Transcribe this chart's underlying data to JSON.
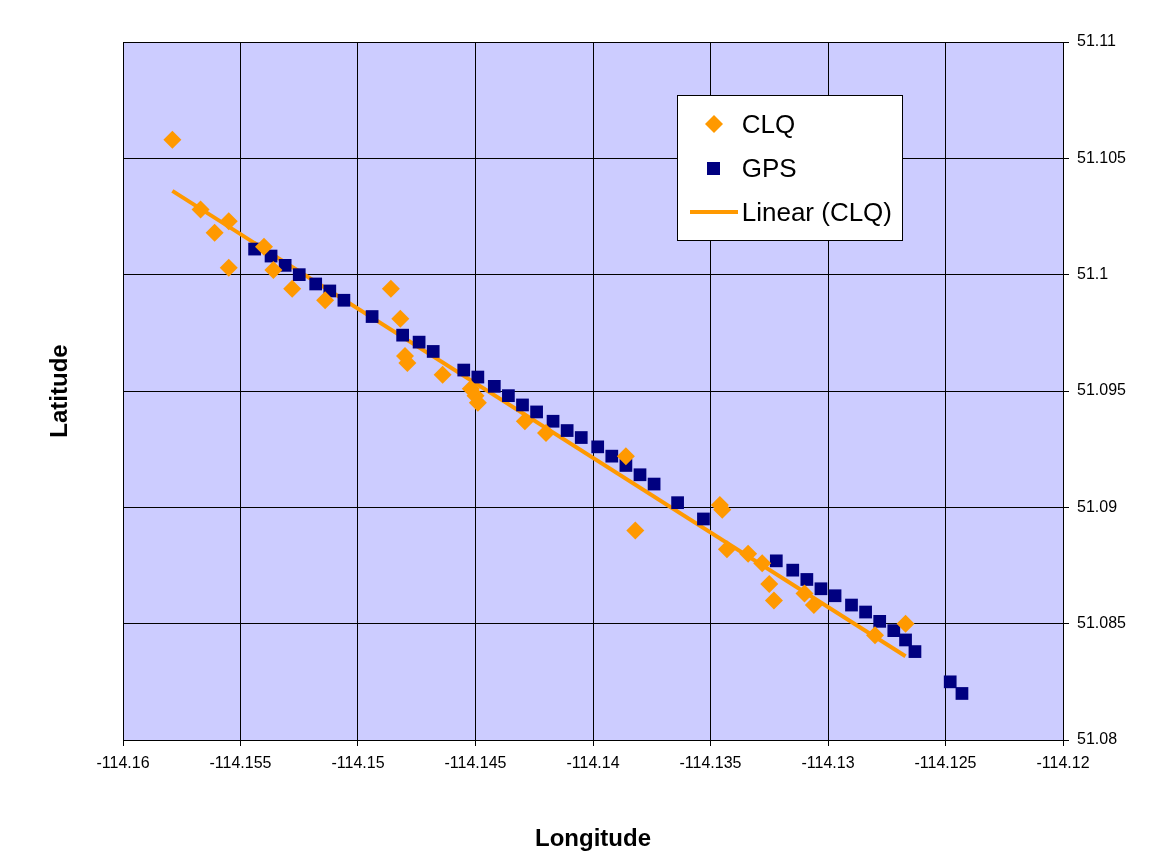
{
  "chart_data": {
    "type": "scatter",
    "xlabel": "Longitude",
    "ylabel": "Latitude",
    "xlim": [
      -114.16,
      -114.12
    ],
    "xticks": [
      -114.16,
      -114.155,
      -114.15,
      -114.145,
      -114.14,
      -114.135,
      -114.13,
      -114.125,
      -114.12
    ],
    "ylim": [
      51.08,
      51.11
    ],
    "yticks": [
      51.08,
      51.085,
      51.09,
      51.095,
      51.1,
      51.105,
      51.11
    ],
    "grid": true,
    "legend": "top right",
    "series": [
      {
        "name": "CLQ",
        "color": "#ff9900",
        "marker": "diamond",
        "x": [
          -114.1579,
          -114.1567,
          -114.1561,
          -114.1555,
          -114.1555,
          -114.154,
          -114.1536,
          -114.1528,
          -114.1514,
          -114.1486,
          -114.1482,
          -114.148,
          -114.1479,
          -114.1464,
          -114.1452,
          -114.145,
          -114.1449,
          -114.1429,
          -114.142,
          -114.1386,
          -114.1382,
          -114.1346,
          -114.1345,
          -114.1343,
          -114.1334,
          -114.1328,
          -114.1325,
          -114.1323,
          -114.131,
          -114.1306,
          -114.128,
          -114.1267
        ],
        "values": [
          51.1058,
          51.1028,
          51.1018,
          51.1023,
          51.1003,
          51.1012,
          51.1002,
          51.0994,
          51.0989,
          51.0994,
          51.0981,
          51.0965,
          51.0962,
          51.0957,
          51.0951,
          51.0948,
          51.0945,
          51.0937,
          51.0932,
          51.0922,
          51.089,
          51.0901,
          51.0899,
          51.0882,
          51.088,
          51.0876,
          51.0867,
          51.086,
          51.0863,
          51.0858,
          51.0845,
          51.085
        ]
      },
      {
        "name": "GPS",
        "color": "#000080",
        "marker": "square",
        "x": [
          -114.1544,
          -114.1537,
          -114.1531,
          -114.1525,
          -114.1518,
          -114.1512,
          -114.1506,
          -114.1494,
          -114.1481,
          -114.1474,
          -114.1468,
          -114.1455,
          -114.1449,
          -114.1442,
          -114.1436,
          -114.143,
          -114.1424,
          -114.1417,
          -114.1411,
          -114.1405,
          -114.1398,
          -114.1392,
          -114.1386,
          -114.138,
          -114.1374,
          -114.1364,
          -114.1353,
          -114.1322,
          -114.1315,
          -114.1309,
          -114.1303,
          -114.1297,
          -114.129,
          -114.1284,
          -114.1278,
          -114.1272,
          -114.1267,
          -114.1263,
          -114.1248,
          -114.1243
        ],
        "values": [
          51.1011,
          51.1008,
          51.1004,
          51.1,
          51.0996,
          51.0993,
          51.0989,
          51.0982,
          51.0974,
          51.0971,
          51.0967,
          51.0959,
          51.0956,
          51.0952,
          51.0948,
          51.0944,
          51.0941,
          51.0937,
          51.0933,
          51.093,
          51.0926,
          51.0922,
          51.0918,
          51.0914,
          51.091,
          51.0902,
          51.0895,
          51.0877,
          51.0873,
          51.0869,
          51.0865,
          51.0862,
          51.0858,
          51.0855,
          51.0851,
          51.0847,
          51.0843,
          51.0838,
          51.0825,
          51.082
        ]
      },
      {
        "name": "Linear (CLQ)",
        "type": "line",
        "color": "#ff9900",
        "marker": "none",
        "line_style": "solid",
        "x": [
          -114.1579,
          -114.1267
        ],
        "values": [
          51.1036,
          51.0836
        ]
      }
    ]
  }
}
